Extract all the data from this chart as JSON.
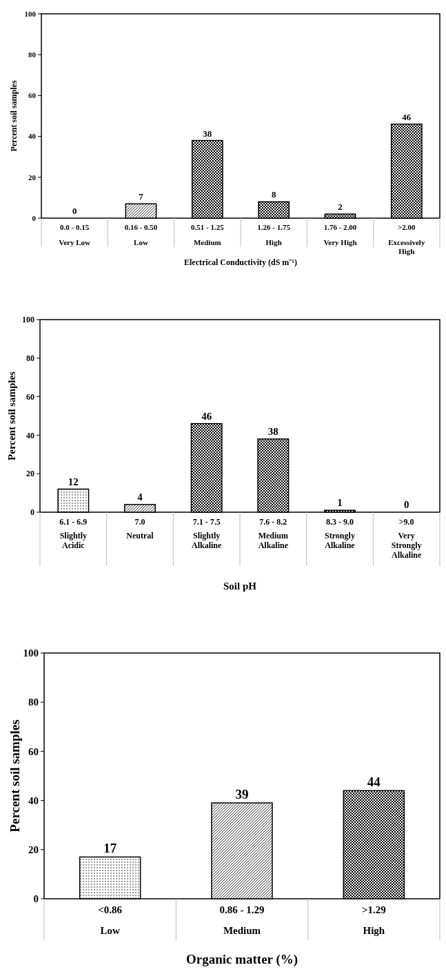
{
  "chart_data": [
    {
      "type": "bar",
      "xlabel": "Electrical Conductivity (dS m⁻¹)",
      "ylabel": "Percent soil samples",
      "categories": [
        "0.0 - 0.15\nVery Low",
        "0.16 - 0.50\nLow",
        "0.51 - 1.25\nMedium",
        "1.26 - 1.75\nHigh",
        "1.76 - 2.00\nVery High",
        ">2.00\nExcessively\nHigh"
      ],
      "values": [
        0,
        7,
        38,
        8,
        2,
        46
      ],
      "color": "#000000",
      "ylim": [
        0,
        100
      ],
      "yticks": [
        0,
        20,
        40,
        60,
        80,
        100
      ],
      "data_labels": true,
      "grid": false
    },
    {
      "type": "bar",
      "xlabel": "Soil pH",
      "ylabel": "Percent soil samples",
      "categories": [
        "6.1 - 6.9\nSlightly\nAcidic",
        "7.0\nNeutral",
        "7.1 - 7.5\nSlightly\nAlkaline",
        "7.6 - 8.2\nMedium\nAlkaline",
        "8.3 - 9.0\nStrongly\nAlkaline",
        ">9.0\nVery\nStrongly\nAlkaline"
      ],
      "values": [
        12,
        4,
        46,
        38,
        1,
        0
      ],
      "color": "#000000",
      "ylim": [
        0,
        100
      ],
      "yticks": [
        0,
        20,
        40,
        60,
        80,
        100
      ],
      "data_labels": true,
      "grid": false
    },
    {
      "type": "bar",
      "xlabel": "Organic matter (%)",
      "ylabel": "Percent soil samples",
      "categories": [
        "<0.86\nLow",
        "0.86 - 1.29\nMedium",
        ">1.29\nHigh"
      ],
      "values": [
        17,
        39,
        44
      ],
      "color": "#000000",
      "ylim": [
        0,
        100
      ],
      "yticks": [
        0,
        20,
        40,
        60,
        80,
        100
      ],
      "data_labels": true,
      "grid": false
    }
  ]
}
